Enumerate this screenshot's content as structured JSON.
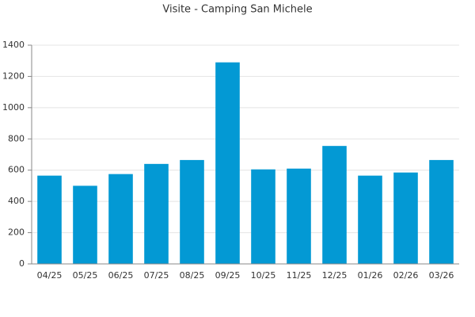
{
  "chart_data": {
    "type": "bar",
    "title": "Visite - Camping San Michele",
    "categories": [
      "04/25",
      "05/25",
      "06/25",
      "07/25",
      "08/25",
      "09/25",
      "10/25",
      "11/25",
      "12/25",
      "01/26",
      "02/26",
      "03/26"
    ],
    "values": [
      565,
      500,
      575,
      640,
      665,
      1290,
      605,
      610,
      755,
      565,
      585,
      665
    ],
    "color": "#0399d4",
    "ylim": [
      0,
      1400
    ],
    "yticks": [
      0,
      200,
      400,
      600,
      800,
      1000,
      1200,
      1400
    ],
    "grid": true
  }
}
